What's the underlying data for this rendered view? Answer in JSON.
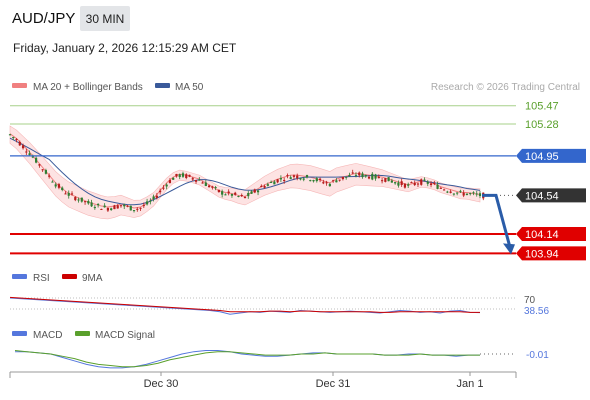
{
  "header": {
    "pair": "AUD/JPY",
    "timeframe": "30 MIN",
    "datetime": "Friday, January 2, 2026 12:15:29 AM CET"
  },
  "colors": {
    "ma20": "#f08080",
    "bollinger_fill": "#fde3e3",
    "ma50": "#3a5a9a",
    "pivot_blue": "#3366cc",
    "resistance_green": "#5aa02c",
    "support_red": "#e00000",
    "current_price": "#333333",
    "rsi": "#5577dd",
    "rsi_9ma": "#cc0000",
    "macd": "#5577dd",
    "macd_signal": "#5aa02c",
    "candle_up": "#2e7d32",
    "candle_down": "#b71c1c",
    "forecast_arrow": "#2a5ca8"
  },
  "chart_data": [
    {
      "type": "candlestick",
      "title": "",
      "legend": [
        {
          "label": "MA 20 + Bollinger Bands",
          "color": "#f08080"
        },
        {
          "label": "MA 50",
          "color": "#3a5a9a"
        }
      ],
      "watermark": "Research © 2026 Trading Central",
      "x_tick_labels": [
        "Dec 30",
        "Dec 31",
        "Jan 1"
      ],
      "y_range": [
        103.85,
        105.55
      ],
      "levels": [
        {
          "label": "105.47",
          "value": 105.47,
          "kind": "resistance"
        },
        {
          "label": "105.28",
          "value": 105.28,
          "kind": "resistance"
        },
        {
          "label": "104.95",
          "value": 104.95,
          "kind": "pivot"
        },
        {
          "label": "104.54",
          "value": 104.54,
          "kind": "last"
        },
        {
          "label": "104.14",
          "value": 104.14,
          "kind": "support"
        },
        {
          "label": "103.94",
          "value": 103.94,
          "kind": "support"
        }
      ],
      "close": [
        105.17,
        105.12,
        105.05,
        104.98,
        104.9,
        104.82,
        104.74,
        104.66,
        104.6,
        104.55,
        104.52,
        104.49,
        104.46,
        104.44,
        104.42,
        104.41,
        104.42,
        104.44,
        104.42,
        104.4,
        104.41,
        104.45,
        104.5,
        104.58,
        104.66,
        104.72,
        104.75,
        104.74,
        104.72,
        104.7,
        104.66,
        104.62,
        104.58,
        104.56,
        104.55,
        104.53,
        104.52,
        104.56,
        104.6,
        104.64,
        104.67,
        104.7,
        104.72,
        104.74,
        104.74,
        104.73,
        104.72,
        104.7,
        104.68,
        104.66,
        104.7,
        104.72,
        104.74,
        104.76,
        104.75,
        104.74,
        104.73,
        104.72,
        104.7,
        104.68,
        104.66,
        104.64,
        104.66,
        104.68,
        104.67,
        104.65,
        104.62,
        104.6,
        104.58,
        104.56,
        104.56,
        104.55,
        104.54
      ],
      "forecast_path": [
        104.54,
        103.94
      ]
    },
    {
      "type": "line",
      "title": "",
      "legend": [
        {
          "label": "RSI",
          "color": "#5577dd"
        },
        {
          "label": "9MA",
          "color": "#cc0000"
        }
      ],
      "level_label": "70",
      "last_label": "38.56",
      "series": [
        {
          "name": "RSI",
          "values": [
            62,
            61,
            60,
            59,
            58,
            57,
            56,
            55,
            54,
            53,
            52,
            51,
            50,
            49,
            48,
            47,
            46,
            45,
            44,
            43,
            42,
            40,
            36,
            38,
            40,
            39,
            41,
            40,
            39,
            42,
            41,
            40,
            39,
            40,
            41,
            40,
            39,
            38,
            40,
            42,
            41,
            39,
            40,
            38,
            41,
            42,
            39,
            38.56
          ]
        },
        {
          "name": "9MA",
          "values": [
            63,
            62,
            61,
            60,
            59,
            58,
            57,
            56,
            55,
            54,
            53,
            52,
            51,
            50,
            49,
            48,
            47,
            46,
            45,
            44,
            43,
            42,
            40,
            40,
            40,
            40,
            41,
            41,
            40,
            41,
            41,
            40,
            40,
            40,
            40,
            40,
            40,
            39,
            39,
            40,
            40,
            40,
            40,
            40,
            40,
            40,
            39,
            39
          ]
        }
      ]
    },
    {
      "type": "line",
      "title": "",
      "legend": [
        {
          "label": "MACD",
          "color": "#5577dd"
        },
        {
          "label": "MACD Signal",
          "color": "#5aa02c"
        }
      ],
      "last_label": "-0.01",
      "series": [
        {
          "name": "MACD",
          "values": [
            0.02,
            0.02,
            0.01,
            0.0,
            -0.03,
            -0.06,
            -0.09,
            -0.11,
            -0.12,
            -0.12,
            -0.11,
            -0.09,
            -0.06,
            -0.03,
            0.0,
            0.02,
            0.03,
            0.03,
            0.02,
            0.0,
            -0.01,
            -0.02,
            -0.02,
            -0.01,
            0.0,
            0.01,
            0.01,
            0.0,
            0.0,
            0.0,
            0.0,
            -0.01,
            -0.01,
            0.0,
            0.0,
            -0.01,
            -0.01,
            -0.02,
            -0.01,
            -0.01
          ]
        },
        {
          "name": "MACD Signal",
          "values": [
            0.03,
            0.02,
            0.01,
            0.0,
            -0.02,
            -0.04,
            -0.07,
            -0.09,
            -0.1,
            -0.11,
            -0.11,
            -0.1,
            -0.08,
            -0.05,
            -0.03,
            -0.01,
            0.01,
            0.02,
            0.02,
            0.01,
            0.0,
            -0.01,
            -0.01,
            -0.01,
            0.0,
            0.0,
            0.01,
            0.0,
            0.0,
            0.0,
            0.0,
            -0.01,
            -0.01,
            -0.01,
            0.0,
            -0.01,
            -0.01,
            -0.01,
            -0.01,
            -0.01
          ]
        }
      ]
    }
  ]
}
